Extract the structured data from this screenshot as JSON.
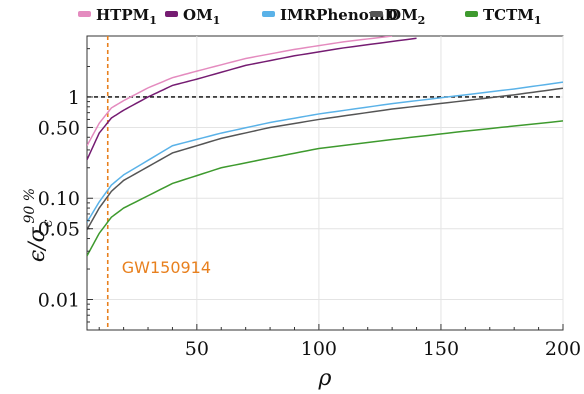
{
  "chart_data": {
    "type": "line",
    "xlabel": "ρ",
    "ylabel": "ϵ/σϵ90 %",
    "ylabel_parts": {
      "base": "ϵ/σ",
      "sub": "ϵ",
      "sup": "90 %"
    },
    "xlim": [
      5,
      200
    ],
    "ylim": [
      0.005,
      4
    ],
    "y_scale": "log",
    "grid": true,
    "legend_position": "top",
    "x_ticks": [
      {
        "value": 50,
        "label": "50"
      },
      {
        "value": 100,
        "label": "100"
      },
      {
        "value": 150,
        "label": "150"
      },
      {
        "value": 200,
        "label": "200"
      }
    ],
    "y_ticks": [
      {
        "value": 0.01,
        "label": "0.01"
      },
      {
        "value": 0.05,
        "label": "0.05"
      },
      {
        "value": 0.1,
        "label": "0.10"
      },
      {
        "value": 0.5,
        "label": "0.50"
      },
      {
        "value": 1,
        "label": "1"
      }
    ],
    "series": [
      {
        "name": "HTPM",
        "name_sub": "1",
        "color": "#e48bbf",
        "x": [
          5,
          10,
          15,
          20,
          30,
          40,
          50,
          70,
          90,
          110,
          130
        ],
        "y": [
          0.33,
          0.55,
          0.78,
          0.92,
          1.23,
          1.55,
          1.8,
          2.4,
          2.95,
          3.5,
          4.0
        ]
      },
      {
        "name": "OM",
        "name_sub": "1",
        "color": "#751c72",
        "x": [
          5,
          10,
          15,
          20,
          30,
          40,
          50,
          70,
          90,
          110,
          140
        ],
        "y": [
          0.24,
          0.44,
          0.62,
          0.74,
          1.0,
          1.3,
          1.5,
          2.05,
          2.55,
          3.05,
          3.8
        ]
      },
      {
        "name": "IMRPhenomD",
        "name_sub": "",
        "color": "#5ab2e8",
        "x": [
          5,
          10,
          15,
          20,
          40,
          60,
          80,
          100,
          130,
          160,
          180,
          200
        ],
        "y": [
          0.058,
          0.092,
          0.135,
          0.17,
          0.33,
          0.44,
          0.56,
          0.68,
          0.86,
          1.05,
          1.2,
          1.4
        ]
      },
      {
        "name": "OM",
        "name_sub": "2",
        "color": "#555555",
        "x": [
          5,
          10,
          15,
          20,
          40,
          60,
          80,
          100,
          130,
          160,
          180,
          200
        ],
        "y": [
          0.049,
          0.08,
          0.117,
          0.15,
          0.28,
          0.39,
          0.5,
          0.6,
          0.76,
          0.92,
          1.05,
          1.22
        ]
      },
      {
        "name": "TCTM",
        "name_sub": "1",
        "color": "#3e9a2e",
        "x": [
          5,
          10,
          15,
          20,
          40,
          60,
          80,
          100,
          130,
          160,
          200
        ],
        "y": [
          0.027,
          0.045,
          0.065,
          0.08,
          0.14,
          0.2,
          0.25,
          0.31,
          0.38,
          0.46,
          0.58
        ]
      }
    ],
    "reference_lines": [
      {
        "orientation": "horizontal",
        "value": 1,
        "color": "#000000",
        "style": "dashed"
      },
      {
        "orientation": "vertical",
        "value": 13.5,
        "color": "#e8801e",
        "style": "dashed",
        "label": "GW150914"
      }
    ]
  }
}
